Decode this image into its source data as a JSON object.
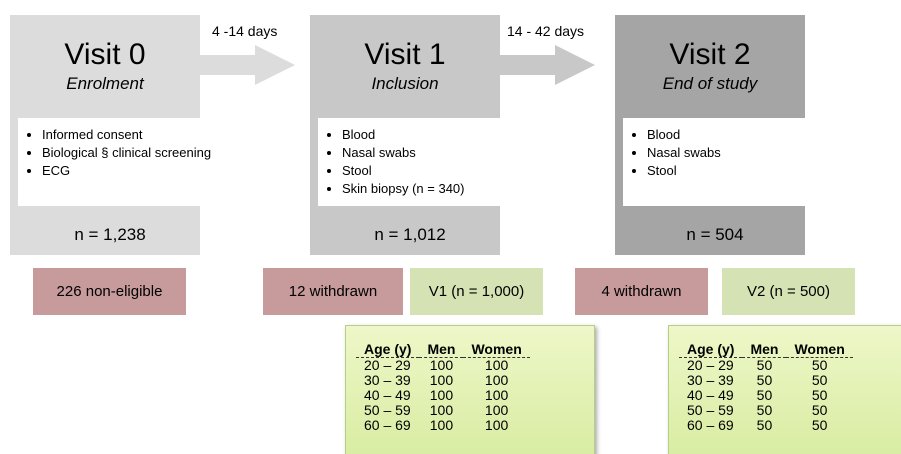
{
  "visits": [
    {
      "title": "Visit 0",
      "subtitle": "Enrolment",
      "items": [
        "Informed consent",
        "Biological § clinical screening",
        "ECG"
      ],
      "n": "n = 1,238"
    },
    {
      "title": "Visit 1",
      "subtitle": "Inclusion",
      "items": [
        "Blood",
        "Nasal swabs",
        "Stool",
        "Skin biopsy (n = 340)"
      ],
      "n": "n = 1,012"
    },
    {
      "title": "Visit 2",
      "subtitle": "End of study",
      "items": [
        "Blood",
        "Nasal swabs",
        "Stool"
      ],
      "n": "n = 504"
    }
  ],
  "arrows": [
    "4 -14 days",
    "14 - 42 days"
  ],
  "outcomes": [
    "226 non-eligible",
    "12 withdrawn",
    "V1 (n = 1,000)",
    "4 withdrawn",
    "V2 (n = 500)"
  ],
  "tables": [
    {
      "header": [
        "Age (y)",
        "Men",
        "Women"
      ],
      "rows": [
        [
          "20 – 29",
          "100",
          "100"
        ],
        [
          "30 – 39",
          "100",
          "100"
        ],
        [
          "40 – 49",
          "100",
          "100"
        ],
        [
          "50 – 59",
          "100",
          "100"
        ],
        [
          "60 – 69",
          "100",
          "100"
        ]
      ]
    },
    {
      "header": [
        "Age (y)",
        "Men",
        "Women"
      ],
      "rows": [
        [
          "20 – 29",
          "50",
          "50"
        ],
        [
          "30 – 39",
          "50",
          "50"
        ],
        [
          "40 – 49",
          "50",
          "50"
        ],
        [
          "50 – 59",
          "50",
          "50"
        ],
        [
          "60 – 69",
          "50",
          "50"
        ]
      ]
    }
  ]
}
